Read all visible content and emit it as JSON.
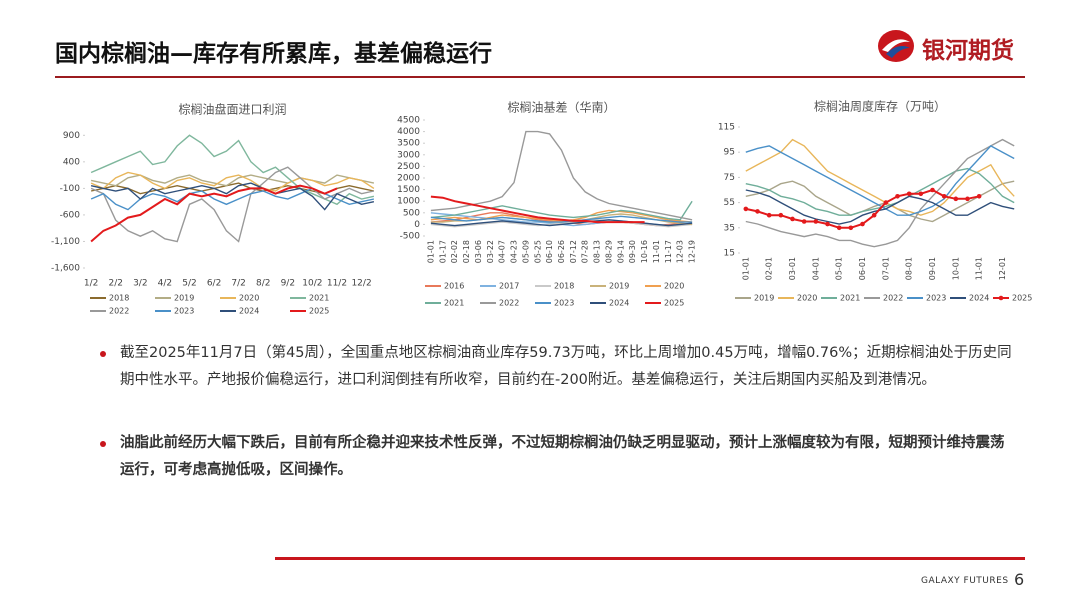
{
  "header": {
    "title": "国内棕榈油—库存有所累库，基差偏稳运行",
    "logo_text": "银河期货"
  },
  "chart_data": [
    {
      "type": "line",
      "title": "棕榈油盘面进口利润",
      "categories": [
        "1/2",
        null,
        "2/2",
        null,
        "3/2",
        null,
        "4/2",
        null,
        "5/2",
        null,
        "6/2",
        null,
        "7/2",
        null,
        "8/2",
        null,
        "9/2",
        null,
        "10/2",
        null,
        "11/2",
        null,
        "12/2",
        null
      ],
      "ylim": [
        -1600,
        1000
      ],
      "yticks": [
        900,
        400,
        -100,
        -600,
        {
          "value": -1100,
          "label": "-1,100"
        },
        {
          "value": -1600,
          "label": "-1,600"
        }
      ],
      "series": [
        {
          "name": "2018",
          "color": "#8b6b2e",
          "values": [
            -150,
            -100,
            -50,
            -100,
            -200,
            -150,
            -100,
            -50,
            -100,
            -150,
            -100,
            -50,
            0,
            -100,
            -150,
            -100,
            -50,
            -100,
            -150,
            -200,
            -100,
            -50,
            -100,
            -150
          ]
        },
        {
          "name": "2019",
          "color": "#b3ad86",
          "values": [
            50,
            0,
            -50,
            100,
            150,
            50,
            0,
            100,
            150,
            50,
            0,
            -50,
            100,
            150,
            100,
            50,
            0,
            100,
            50,
            0,
            150,
            100,
            50,
            0
          ]
        },
        {
          "name": "2020",
          "color": "#e8b65a",
          "values": [
            0,
            -100,
            100,
            200,
            150,
            0,
            -100,
            50,
            100,
            0,
            -50,
            100,
            150,
            50,
            -100,
            -150,
            0,
            100,
            50,
            -50,
            0,
            100,
            50,
            -100
          ]
        },
        {
          "name": "2021",
          "color": "#7fb79d",
          "values": [
            200,
            300,
            400,
            500,
            600,
            350,
            400,
            700,
            900,
            750,
            500,
            600,
            800,
            400,
            200,
            300,
            100,
            -100,
            -200,
            -300,
            -400,
            -200,
            -300,
            -250
          ]
        },
        {
          "name": "2022",
          "color": "#999999",
          "values": [
            -100,
            -200,
            -700,
            -900,
            -1000,
            -900,
            -1050,
            -1100,
            -400,
            -300,
            -500,
            -900,
            -1100,
            -200,
            0,
            200,
            300,
            100,
            -100,
            -300,
            -200,
            -100,
            -200,
            -150
          ]
        },
        {
          "name": "2023",
          "color": "#4a90c8",
          "values": [
            -300,
            -200,
            -400,
            -500,
            -300,
            -200,
            -250,
            -350,
            -200,
            -150,
            -300,
            -400,
            -300,
            -200,
            -150,
            -250,
            -300,
            -200,
            -100,
            -200,
            -300,
            -400,
            -350,
            -300
          ]
        },
        {
          "name": "2024",
          "color": "#2f4f7a",
          "values": [
            -50,
            -100,
            -150,
            -100,
            -300,
            -100,
            -200,
            -150,
            -100,
            -50,
            -100,
            -200,
            -50,
            0,
            -100,
            -200,
            -150,
            -100,
            -250,
            -500,
            -200,
            -300,
            -400,
            -350
          ]
        },
        {
          "name": "2025",
          "color": "#e31a1c",
          "values": [
            -1100,
            -900,
            -800,
            -650,
            -600,
            -450,
            -300,
            -400,
            -200,
            -250,
            -200,
            -250,
            -150,
            -100,
            -100,
            -200,
            -100,
            -50,
            -100,
            -200,
            -100,
            null,
            null,
            null
          ]
        }
      ]
    },
    {
      "type": "line",
      "title": "棕榈油基差（华南）",
      "categories": [
        "01-01",
        "01-17",
        "02-02",
        "02-18",
        "03-06",
        "03-22",
        "04-07",
        "04-23",
        "05-09",
        "05-25",
        "06-10",
        "06-26",
        "07-12",
        "07-28",
        "08-13",
        "08-29",
        "09-14",
        "09-30",
        "10-16",
        "11-01",
        "11-17",
        "12-03",
        "12-19"
      ],
      "ylim": [
        -500,
        4500
      ],
      "yticks": [
        4500,
        4000,
        3500,
        3000,
        2500,
        2000,
        1500,
        1000,
        500,
        0,
        -500
      ],
      "series": [
        {
          "name": "2016",
          "color": "#e8795a",
          "values": [
            100,
            150,
            200,
            300,
            400,
            500,
            500,
            400,
            300,
            200,
            150,
            100,
            50,
            0,
            50,
            100,
            100,
            50,
            0,
            -50,
            0,
            50,
            0
          ]
        },
        {
          "name": "2017",
          "color": "#7fb2e0",
          "values": [
            500,
            450,
            400,
            350,
            300,
            250,
            200,
            150,
            100,
            100,
            50,
            0,
            -50,
            0,
            50,
            100,
            150,
            100,
            50,
            0,
            -50,
            0,
            50
          ]
        },
        {
          "name": "2018",
          "color": "#c9c9c9",
          "values": [
            0,
            -50,
            -100,
            -50,
            0,
            50,
            100,
            50,
            0,
            -50,
            0,
            50,
            100,
            150,
            200,
            150,
            100,
            50,
            0,
            -50,
            -100,
            -50,
            0
          ]
        },
        {
          "name": "2019",
          "color": "#c9b27a",
          "values": [
            100,
            100,
            150,
            150,
            200,
            250,
            300,
            250,
            200,
            150,
            100,
            100,
            150,
            200,
            300,
            400,
            450,
            400,
            300,
            200,
            100,
            50,
            0
          ]
        },
        {
          "name": "2020",
          "color": "#f0a050",
          "values": [
            200,
            250,
            300,
            250,
            200,
            300,
            400,
            350,
            300,
            250,
            200,
            150,
            200,
            300,
            500,
            600,
            550,
            500,
            400,
            300,
            200,
            150,
            100
          ]
        },
        {
          "name": "2021",
          "color": "#6fae9a",
          "values": [
            300,
            350,
            400,
            500,
            600,
            700,
            800,
            700,
            600,
            500,
            400,
            350,
            300,
            350,
            400,
            500,
            600,
            550,
            450,
            350,
            250,
            200,
            1000
          ]
        },
        {
          "name": "2022",
          "color": "#999999",
          "values": [
            600,
            650,
            700,
            800,
            900,
            1000,
            1200,
            1800,
            4000,
            4000,
            3900,
            3200,
            2000,
            1400,
            1100,
            900,
            800,
            700,
            600,
            500,
            400,
            300,
            200
          ]
        },
        {
          "name": "2023",
          "color": "#4a90c8",
          "values": [
            300,
            250,
            200,
            150,
            200,
            250,
            300,
            250,
            200,
            150,
            100,
            100,
            150,
            200,
            250,
            300,
            350,
            300,
            250,
            200,
            150,
            100,
            100
          ]
        },
        {
          "name": "2024",
          "color": "#2f4f7a",
          "values": [
            50,
            0,
            -50,
            0,
            50,
            100,
            150,
            100,
            50,
            0,
            -50,
            0,
            50,
            100,
            150,
            200,
            150,
            100,
            50,
            0,
            -50,
            0,
            50
          ]
        },
        {
          "name": "2025",
          "color": "#e31a1c",
          "values": [
            1200,
            1150,
            1000,
            900,
            800,
            700,
            600,
            500,
            400,
            300,
            250,
            200,
            150,
            150,
            100,
            100,
            100,
            100,
            100,
            null,
            null,
            null,
            null
          ]
        }
      ]
    },
    {
      "type": "line",
      "title": "棕榈油周度库存（万吨）",
      "categories": [
        "01-01",
        null,
        "02-01",
        null,
        "03-01",
        null,
        "04-01",
        null,
        "05-01",
        null,
        "06-01",
        null,
        "07-01",
        null,
        "08-01",
        null,
        "09-01",
        null,
        "10-01",
        null,
        "11-01",
        null,
        "12-01",
        null
      ],
      "ylim": [
        15,
        115
      ],
      "yticks": [
        115,
        95,
        75,
        55,
        35,
        15
      ],
      "series": [
        {
          "name": "2019",
          "color": "#a9a58a",
          "values": [
            60,
            62,
            65,
            70,
            72,
            68,
            60,
            55,
            50,
            45,
            48,
            52,
            55,
            50,
            45,
            42,
            40,
            45,
            50,
            55,
            60,
            65,
            70,
            72
          ]
        },
        {
          "name": "2020",
          "color": "#e8b65a",
          "values": [
            80,
            85,
            90,
            95,
            105,
            100,
            90,
            80,
            75,
            70,
            65,
            60,
            55,
            50,
            48,
            45,
            48,
            55,
            65,
            75,
            80,
            85,
            70,
            60
          ]
        },
        {
          "name": "2021",
          "color": "#6fae9a",
          "values": [
            70,
            68,
            65,
            60,
            58,
            55,
            50,
            48,
            45,
            45,
            48,
            50,
            52,
            55,
            60,
            65,
            70,
            75,
            80,
            82,
            78,
            70,
            60,
            55
          ]
        },
        {
          "name": "2022",
          "color": "#999999",
          "values": [
            40,
            38,
            35,
            32,
            30,
            28,
            30,
            28,
            25,
            25,
            22,
            20,
            22,
            25,
            35,
            50,
            60,
            70,
            80,
            90,
            95,
            100,
            105,
            100
          ]
        },
        {
          "name": "2023",
          "color": "#4a90c8",
          "values": [
            95,
            98,
            100,
            95,
            90,
            85,
            80,
            75,
            70,
            65,
            60,
            55,
            50,
            45,
            45,
            48,
            52,
            58,
            70,
            80,
            90,
            100,
            95,
            90
          ]
        },
        {
          "name": "2024",
          "color": "#2f4f7a",
          "values": [
            65,
            63,
            60,
            55,
            50,
            45,
            42,
            40,
            38,
            40,
            45,
            48,
            50,
            55,
            60,
            58,
            55,
            50,
            45,
            45,
            50,
            55,
            52,
            50
          ]
        },
        {
          "name": "2025",
          "color": "#e31a1c",
          "markers": true,
          "values": [
            50,
            48,
            45,
            45,
            42,
            40,
            40,
            38,
            35,
            35,
            38,
            45,
            55,
            60,
            62,
            62,
            65,
            60,
            58,
            58,
            60,
            null,
            null,
            null
          ]
        }
      ]
    }
  ],
  "bullets": [
    "截至2025年11月7日（第45周），全国重点地区棕榈油商业库存59.73万吨，环比上周增加0.45万吨，增幅0.76%；近期棕榈油处于历史同期中性水平。产地报价偏稳运行，进口利润倒挂有所收窄，目前约在-200附近。基差偏稳运行，关注后期国内买船及到港情况。",
    "油脂此前经历大幅下跌后，目前有所企稳并迎来技术性反弹，不过短期棕榈油仍缺乏明显驱动，预计上涨幅度较为有限，短期预计维持震荡运行，可考虑高抛低吸，区间操作。"
  ],
  "footer": {
    "brand": "GALAXY FUTURES",
    "page": 6
  }
}
